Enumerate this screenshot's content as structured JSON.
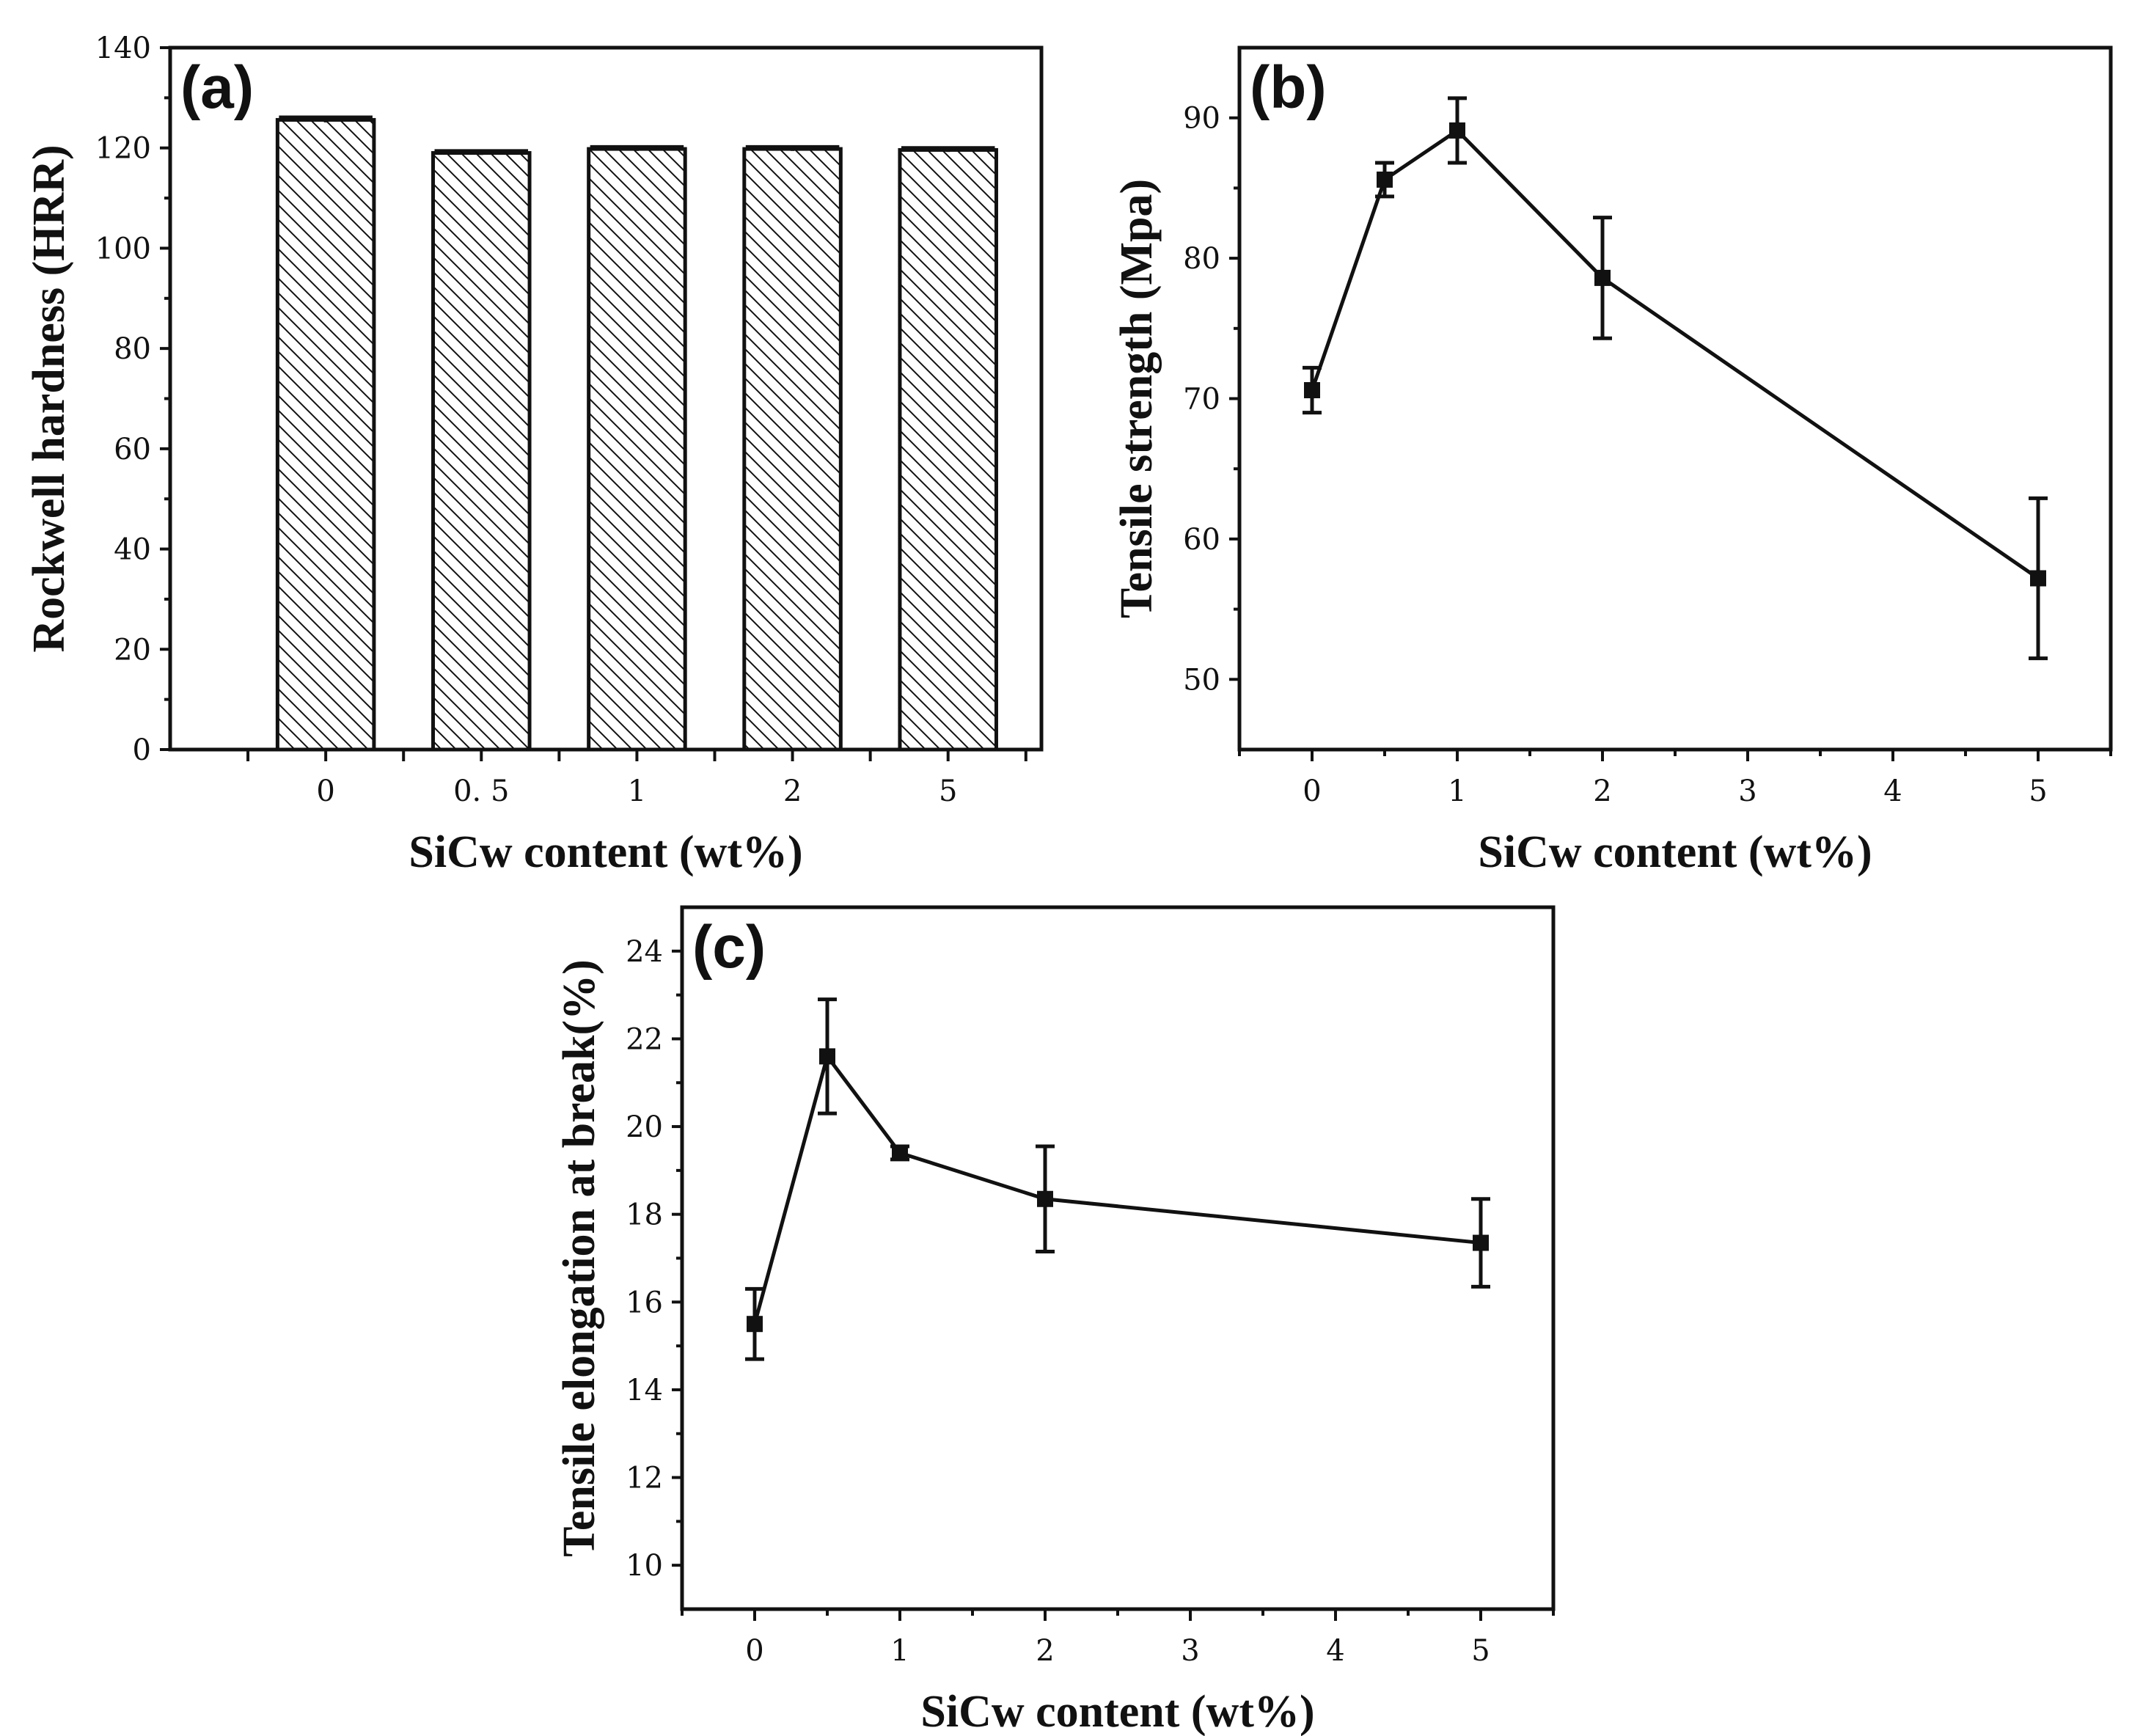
{
  "chart_data": [
    {
      "panel": "(a)",
      "type": "bar",
      "categories": [
        "0",
        "0. 5",
        "1",
        "2",
        "5"
      ],
      "values": [
        125.6,
        119.0,
        119.8,
        119.8,
        119.6
      ],
      "errors": [
        0.5,
        0.4,
        0.4,
        0.4,
        0.4
      ],
      "xlabel": "SiCw content (wt%)",
      "ylabel": "Rockwell hardness (HRR)",
      "ylim": [
        0,
        140
      ],
      "yticks": [
        0,
        20,
        40,
        60,
        80,
        100,
        120,
        140
      ],
      "pattern": "diagonal-hatch"
    },
    {
      "panel": "(b)",
      "type": "line",
      "x": [
        0,
        0.5,
        1,
        2,
        5
      ],
      "y": [
        70.6,
        85.6,
        89.1,
        78.6,
        57.2
      ],
      "errors": [
        1.6,
        1.2,
        2.3,
        4.3,
        5.7
      ],
      "xlabel": "SiCw content (wt%)",
      "ylabel": "Tensile strength (Mpa)",
      "xlim": [
        -0.5,
        5.5
      ],
      "ylim": [
        45,
        95
      ],
      "xticks": [
        0,
        1,
        2,
        3,
        4,
        5
      ],
      "yticks": [
        50,
        60,
        70,
        80,
        90
      ]
    },
    {
      "panel": "(c)",
      "type": "line",
      "x": [
        0,
        0.5,
        1,
        2,
        5
      ],
      "y": [
        15.5,
        21.6,
        19.4,
        18.35,
        17.35
      ],
      "errors": [
        0.8,
        1.3,
        0.15,
        1.2,
        1.0
      ],
      "xlabel": "SiCw content (wt%)",
      "ylabel": "Tensile elongation at break(%)",
      "xlim": [
        -0.5,
        5.5
      ],
      "ylim": [
        9,
        25
      ],
      "xticks": [
        0,
        1,
        2,
        3,
        4,
        5
      ],
      "yticks": [
        10,
        12,
        14,
        16,
        18,
        20,
        22,
        24
      ]
    }
  ]
}
